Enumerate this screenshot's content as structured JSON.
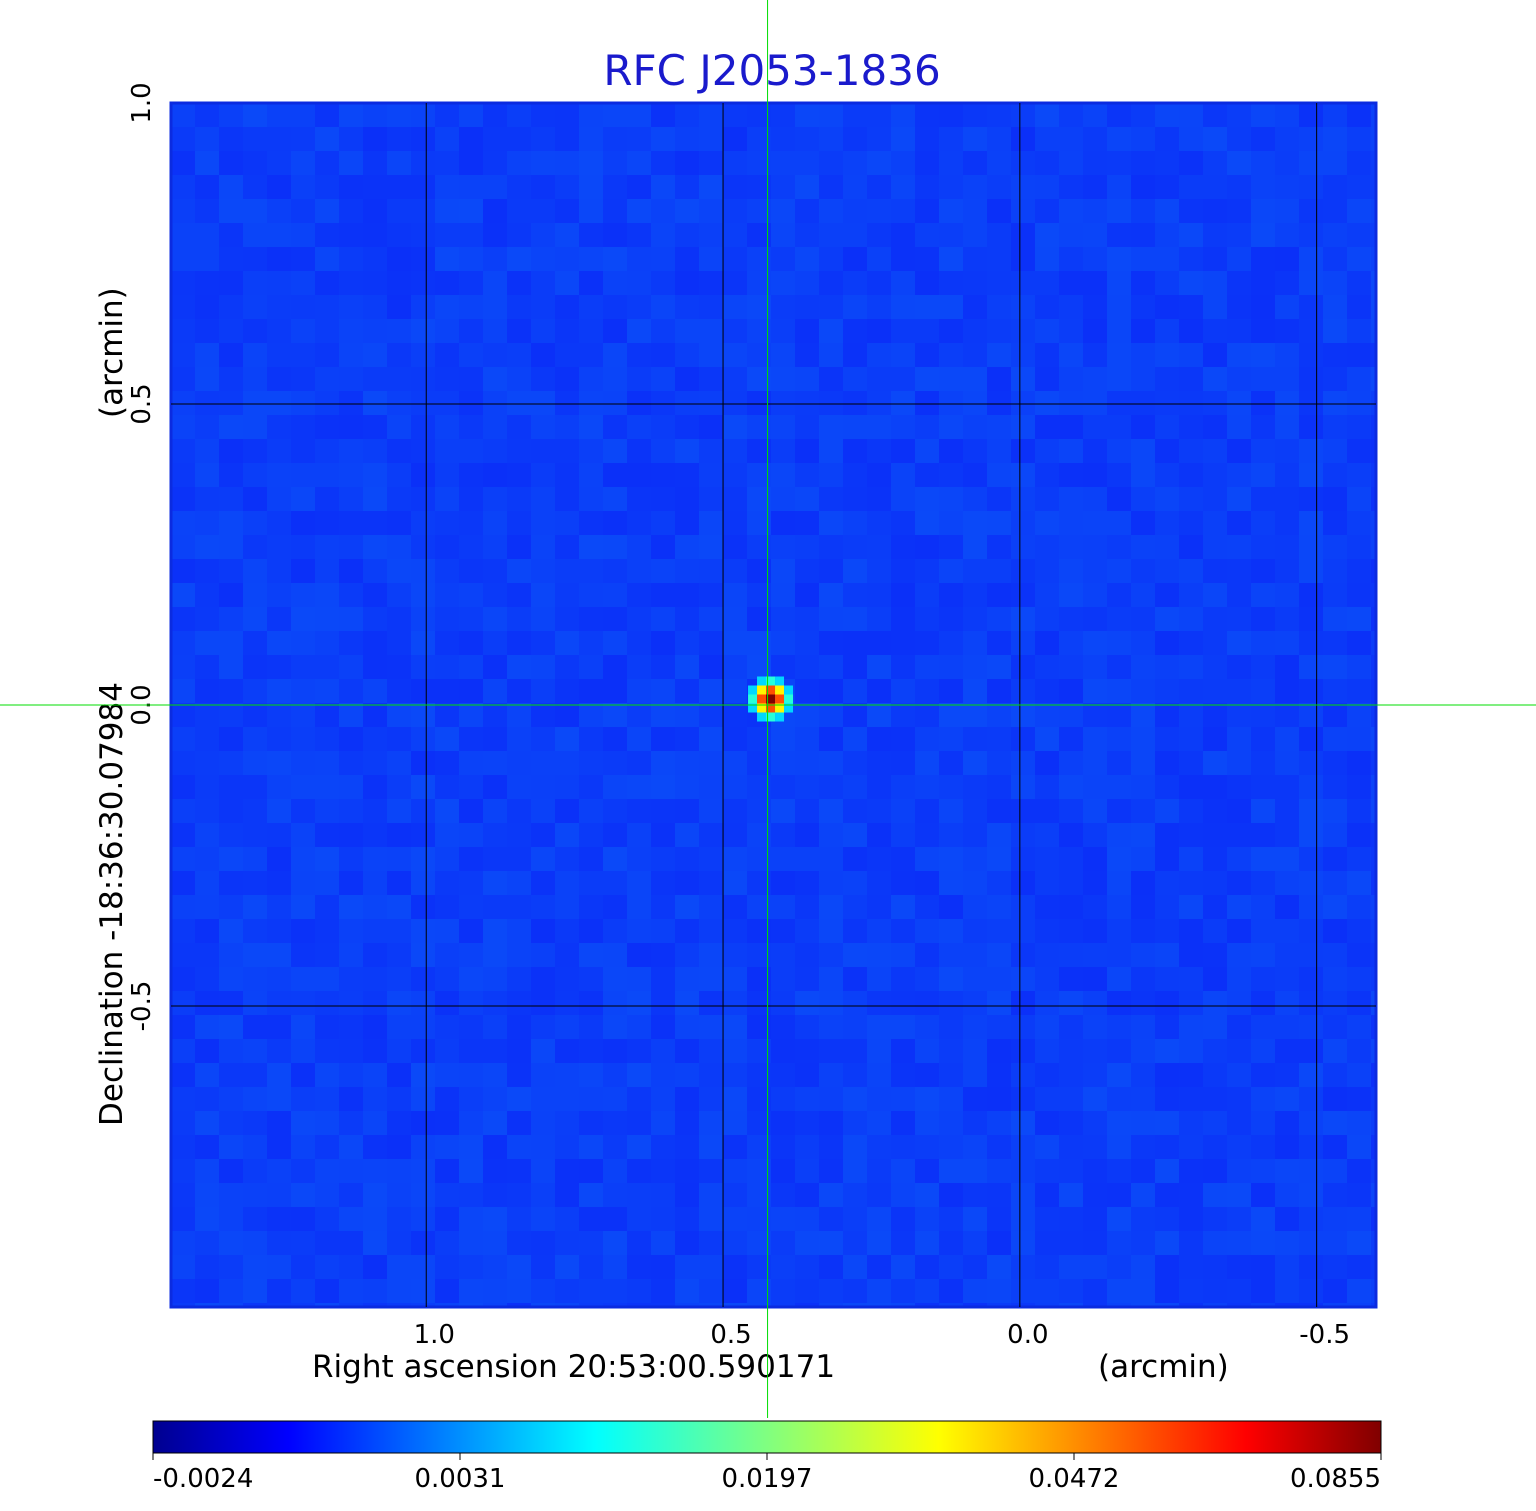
{
  "chart_data": {
    "type": "heatmap",
    "title": "RFC J2053-1836",
    "xlabel": "Right ascension  20:53:00.590171",
    "xlabel_unit": "(arcmin)",
    "ylabel": "Declination  -18:36:30.07984",
    "ylabel_unit": "(arcmin)",
    "x_ticks": [
      {
        "value": 1.0,
        "label": "1.0"
      },
      {
        "value": 0.5,
        "label": "0.5"
      },
      {
        "value": 0.0,
        "label": "0.0"
      },
      {
        "value": -0.5,
        "label": "-0.5"
      }
    ],
    "y_ticks": [
      {
        "value": 1.0,
        "label": "1.0"
      },
      {
        "value": 0.5,
        "label": "0.5"
      },
      {
        "value": 0.0,
        "label": "0.0"
      },
      {
        "value": -0.5,
        "label": "-0.5"
      }
    ],
    "xlim": [
      1.43,
      -0.6
    ],
    "ylim": [
      -1.0,
      1.0
    ],
    "x_inverted": true,
    "grid": true,
    "crosshair": {
      "x": 0.425,
      "y": 0.0,
      "color": "#00dd00"
    },
    "source_peak": {
      "x": 0.42,
      "y": 0.0,
      "value": 0.0855
    },
    "background_level": -0.0005,
    "colormap": "jet",
    "colorbar": {
      "ticks": [
        "-0.0024",
        "0.0031",
        "0.0197",
        "0.0472",
        "0.0855"
      ],
      "min": -0.0024,
      "max": 0.0855
    }
  }
}
